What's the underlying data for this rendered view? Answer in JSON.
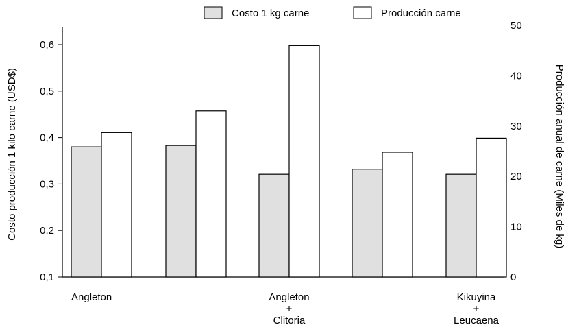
{
  "chart_data": {
    "type": "bar",
    "categories": [
      {
        "lines": [
          "Angleton"
        ]
      },
      {
        "lines": []
      },
      {
        "lines": [
          "Angleton",
          "+",
          "Clitoria"
        ]
      },
      {
        "lines": []
      },
      {
        "lines": [
          "Kikuyina",
          "+",
          "Leucaena"
        ]
      }
    ],
    "series": [
      {
        "name": "Costo 1 kg carne",
        "axis": "left",
        "color": "#e0e0e0",
        "values": [
          0.38,
          0.383,
          0.321,
          0.332,
          0.321
        ]
      },
      {
        "name": "Producción carne",
        "axis": "right",
        "color": "#ffffff",
        "values": [
          28.7,
          33.0,
          46.0,
          24.8,
          27.6
        ]
      }
    ],
    "y_left": {
      "label": "Costo producción 1 kilo carne (USD$)",
      "min": 0.1,
      "max": 0.6,
      "ticks": [
        0.1,
        0.2,
        0.3,
        0.4,
        0.5,
        0.6
      ],
      "tick_labels": [
        "0,1",
        "0,2",
        "0,3",
        "0,4",
        "0,5",
        "0,6"
      ]
    },
    "y_right": {
      "label": "Producción anual de carne (Miles de kg)",
      "min": 0,
      "max": 50,
      "ticks": [
        0,
        10,
        20,
        30,
        40,
        50
      ],
      "tick_labels": [
        "0",
        "10",
        "20",
        "30",
        "40",
        "50"
      ]
    },
    "legend_placement": "top",
    "grid": false
  }
}
